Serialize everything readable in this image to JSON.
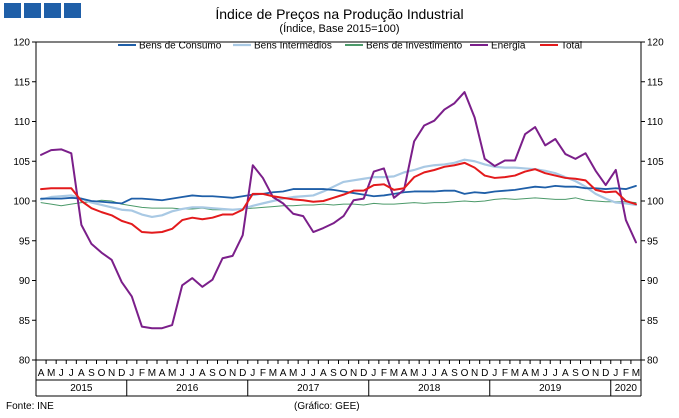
{
  "brand": {
    "color": "#1f5fa8"
  },
  "footer": {
    "source": "Fonte: INE",
    "credit": "(Gráfico: GEE)"
  },
  "chart_data": {
    "type": "line",
    "title": "Índice de Preços na Produção Industrial",
    "subtitle": "(Índice, Base 2015=100)",
    "ylim": [
      80,
      120
    ],
    "yticks": [
      80,
      85,
      90,
      95,
      100,
      105,
      110,
      115,
      120
    ],
    "secondary_axis": true,
    "legend_position": "top",
    "month_labels": [
      "A",
      "M",
      "J",
      "J",
      "A",
      "S",
      "O",
      "N",
      "D",
      "J",
      "F",
      "M",
      "A",
      "M",
      "J",
      "J",
      "A",
      "S",
      "O",
      "N",
      "D",
      "J",
      "F",
      "M",
      "A",
      "M",
      "J",
      "J",
      "A",
      "S",
      "O",
      "N",
      "D",
      "J",
      "F",
      "M",
      "A",
      "M",
      "J",
      "J",
      "A",
      "S",
      "O",
      "N",
      "D",
      "J",
      "F",
      "M",
      "A",
      "M",
      "J",
      "J",
      "A",
      "S",
      "O",
      "N",
      "D",
      "J",
      "F",
      "M"
    ],
    "years": [
      {
        "label": "2015",
        "start": 0,
        "end": 9
      },
      {
        "label": "2016",
        "start": 9,
        "end": 21
      },
      {
        "label": "2017",
        "start": 21,
        "end": 33
      },
      {
        "label": "2018",
        "start": 33,
        "end": 45
      },
      {
        "label": "2019",
        "start": 45,
        "end": 57
      },
      {
        "label": "2020",
        "start": 57,
        "end": 60
      }
    ],
    "series": [
      {
        "name": "Bens de Consumo",
        "color": "#1f5fa8",
        "width": 1.8,
        "values": [
          100.3,
          100.3,
          100.3,
          100.4,
          100.3,
          100.0,
          99.9,
          99.8,
          99.7,
          100.3,
          100.3,
          100.2,
          100.1,
          100.3,
          100.5,
          100.7,
          100.6,
          100.6,
          100.5,
          100.4,
          100.6,
          100.8,
          100.9,
          101.1,
          101.2,
          101.5,
          101.5,
          101.5,
          101.5,
          101.4,
          101.2,
          101.0,
          100.8,
          100.6,
          100.7,
          100.9,
          101.1,
          101.2,
          101.2,
          101.2,
          101.3,
          101.3,
          100.9,
          101.1,
          101.0,
          101.2,
          101.3,
          101.4,
          101.6,
          101.8,
          101.7,
          101.9,
          101.8,
          101.8,
          101.6,
          101.6,
          101.5,
          101.6,
          101.5,
          101.9
        ]
      },
      {
        "name": "Bens Intermédios",
        "color": "#a9c9e4",
        "width": 2.2,
        "values": [
          100.2,
          100.5,
          100.6,
          100.7,
          100.3,
          99.8,
          99.5,
          99.2,
          98.9,
          98.8,
          98.3,
          98.0,
          98.2,
          98.7,
          99.0,
          99.2,
          99.2,
          99.1,
          99.0,
          98.9,
          99.0,
          99.4,
          99.7,
          100.0,
          100.3,
          100.5,
          100.6,
          100.7,
          101.2,
          101.8,
          102.4,
          102.6,
          102.8,
          103.0,
          103.0,
          103.1,
          103.6,
          103.9,
          104.3,
          104.5,
          104.6,
          104.8,
          105.2,
          105.0,
          104.6,
          104.3,
          104.2,
          104.2,
          104.1,
          104.0,
          103.8,
          103.5,
          103.0,
          102.5,
          101.8,
          100.9,
          100.3,
          99.8,
          99.7,
          99.5
        ]
      },
      {
        "name": "Bens de Investimento",
        "color": "#4c9a6a",
        "width": 1.0,
        "values": [
          99.8,
          99.6,
          99.4,
          99.6,
          99.8,
          99.9,
          100.1,
          100.0,
          99.6,
          99.4,
          99.2,
          99.1,
          99.1,
          99.1,
          99.0,
          99.0,
          99.1,
          98.9,
          98.9,
          98.9,
          99.0,
          99.1,
          99.2,
          99.3,
          99.4,
          99.4,
          99.5,
          99.5,
          99.6,
          99.5,
          99.6,
          99.6,
          99.5,
          99.7,
          99.6,
          99.6,
          99.7,
          99.8,
          99.7,
          99.8,
          99.8,
          99.9,
          100.0,
          99.9,
          100.0,
          100.2,
          100.3,
          100.2,
          100.3,
          100.4,
          100.3,
          100.2,
          100.2,
          100.4,
          100.1,
          100.0,
          99.9,
          99.9,
          99.9,
          99.8
        ]
      },
      {
        "name": "Energia",
        "color": "#7b1f8a",
        "width": 2.0,
        "values": [
          105.8,
          106.4,
          106.5,
          106.0,
          97.0,
          94.6,
          93.5,
          92.6,
          89.8,
          88.0,
          84.2,
          84.0,
          84.0,
          84.4,
          89.4,
          90.3,
          89.2,
          90.1,
          92.8,
          93.1,
          95.7,
          104.5,
          102.9,
          100.5,
          99.7,
          98.4,
          98.1,
          96.1,
          96.6,
          97.2,
          98.1,
          100.1,
          100.3,
          103.7,
          104.1,
          100.4,
          101.4,
          107.5,
          109.5,
          110.1,
          111.5,
          112.3,
          113.7,
          110.5,
          105.3,
          104.4,
          105.1,
          105.1,
          108.4,
          109.3,
          107.0,
          107.8,
          105.9,
          105.3,
          106.0,
          103.8,
          102.0,
          103.9,
          97.6,
          94.8
        ]
      },
      {
        "name": "Total",
        "color": "#e31a1c",
        "width": 2.0,
        "values": [
          101.5,
          101.6,
          101.6,
          101.6,
          100.0,
          99.1,
          98.6,
          98.2,
          97.5,
          97.1,
          96.1,
          96.0,
          96.1,
          96.5,
          97.6,
          97.9,
          97.7,
          97.9,
          98.3,
          98.3,
          98.9,
          100.9,
          100.9,
          100.6,
          100.4,
          100.2,
          100.1,
          99.9,
          100.0,
          100.4,
          100.8,
          101.3,
          101.3,
          102.0,
          102.1,
          101.4,
          101.6,
          103.0,
          103.6,
          103.9,
          104.3,
          104.5,
          104.8,
          104.2,
          103.2,
          102.9,
          103.0,
          103.2,
          103.7,
          104.0,
          103.5,
          103.2,
          102.9,
          102.8,
          102.6,
          101.4,
          101.1,
          101.2,
          100.0,
          99.6
        ]
      }
    ]
  }
}
